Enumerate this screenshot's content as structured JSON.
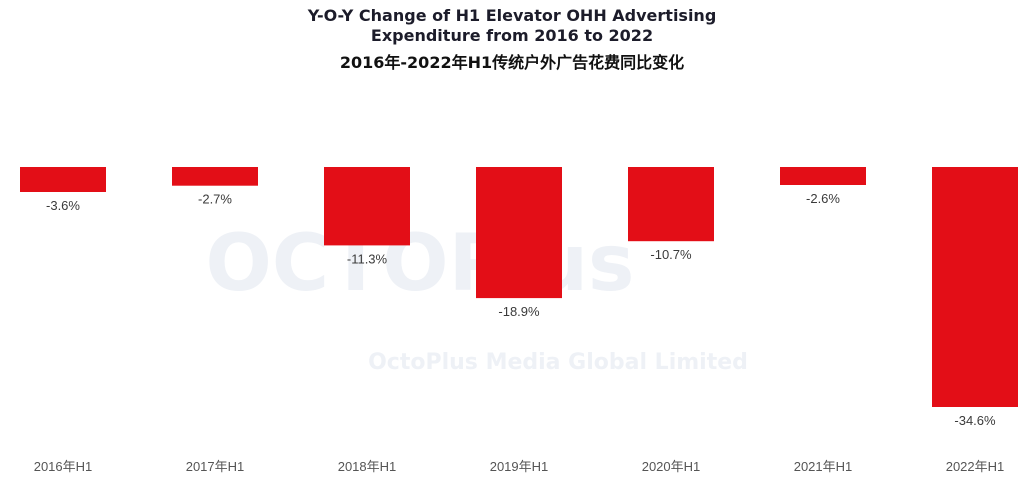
{
  "title_lines": [
    "Y-O-Y Change of H1 Elevator OHH Advertising",
    "Expenditure from 2016 to 2022"
  ],
  "subtitle": "2016年-2022年H1传统户外广告花费同比变化",
  "watermark": {
    "logo_text": "OCTOPlus",
    "company": "OctoPlus Media Global Limited"
  },
  "chart_data": {
    "type": "bar",
    "title": "Y-O-Y Change of H1 Elevator OHH Advertising Expenditure from 2016 to 2022",
    "subtitle": "2016年-2022年H1传统户外广告花费同比变化",
    "categories": [
      "2016年H1",
      "2017年H1",
      "2018年H1",
      "2019年H1",
      "2020年H1",
      "2021年H1",
      "2022年H1"
    ],
    "values": [
      -3.6,
      -2.7,
      -11.3,
      -18.9,
      -10.7,
      -2.6,
      -34.6
    ],
    "labels": [
      "-3.6%",
      "-2.7%",
      "-11.3%",
      "-18.9%",
      "-10.7%",
      "-2.6%",
      "-34.6%"
    ],
    "unit": "%",
    "ylim": [
      -34.6,
      0
    ],
    "grid": false,
    "bar_color": "#e30e17"
  }
}
